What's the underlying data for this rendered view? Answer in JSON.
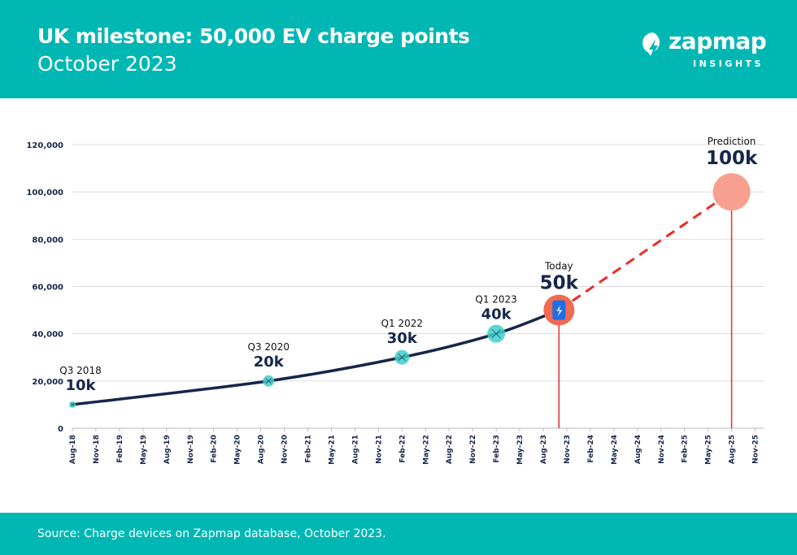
{
  "header": {
    "title": "UK milestone: 50,000 EV charge points",
    "subtitle": "October 2023",
    "logo": {
      "word": "zapmap",
      "sub": "INSIGHTS"
    }
  },
  "footer": {
    "source": "Source: Charge devices on Zapmap database, October 2023."
  },
  "colors": {
    "teal": "#00b7b4",
    "navy": "#16264a",
    "red": "#ef2b23",
    "coral": "#f26a4f",
    "salmon": "#f7a08f",
    "marker": "#3fcfcb",
    "charger": "#1e6ee6"
  },
  "chart_data": {
    "type": "line",
    "ylim": [
      0,
      120000
    ],
    "yticks": [
      0,
      20000,
      40000,
      60000,
      80000,
      100000,
      120000
    ],
    "ytick_labels": [
      "0",
      "20,000",
      "40,000",
      "60,000",
      "80,000",
      "100,000",
      "120,000"
    ],
    "xtick_labels": [
      "Aug-18",
      "Nov-18",
      "Feb-19",
      "May-19",
      "Aug-19",
      "Nov-19",
      "Feb-20",
      "May-20",
      "Aug-20",
      "Nov-20",
      "Feb-21",
      "May-21",
      "Aug-21",
      "Nov-21",
      "Feb-22",
      "May-22",
      "Aug-22",
      "Nov-22",
      "Feb-23",
      "May-23",
      "Aug-23",
      "Nov-23",
      "Feb-24",
      "May-24",
      "Aug-24",
      "Nov-24",
      "Feb-25",
      "May-25",
      "Aug-25",
      "Nov-25"
    ],
    "grid": true,
    "series": [
      {
        "style": "solid",
        "points": [
          {
            "x": "Aug-18",
            "y": 10000
          },
          {
            "x": "Sep-20",
            "y": 20000
          },
          {
            "x": "Feb-22",
            "y": 30000
          },
          {
            "x": "Feb-23",
            "y": 40000
          },
          {
            "x": "Oct-23",
            "y": 50000
          }
        ]
      },
      {
        "style": "dashed",
        "points": [
          {
            "x": "Oct-23",
            "y": 50000
          },
          {
            "x": "Aug-25",
            "y": 100000
          }
        ]
      }
    ],
    "annotations": [
      {
        "x": "Aug-18",
        "y": 10000,
        "label": "Q3 2018",
        "value": "10k"
      },
      {
        "x": "Sep-20",
        "y": 20000,
        "label": "Q3 2020",
        "value": "20k"
      },
      {
        "x": "Feb-22",
        "y": 30000,
        "label": "Q1 2022",
        "value": "30k"
      },
      {
        "x": "Feb-23",
        "y": 40000,
        "label": "Q1 2023",
        "value": "40k"
      },
      {
        "x": "Oct-23",
        "y": 50000,
        "label": "Today",
        "value": "50k"
      },
      {
        "x": "Aug-25",
        "y": 100000,
        "label": "Prediction",
        "value": "100k"
      }
    ]
  }
}
